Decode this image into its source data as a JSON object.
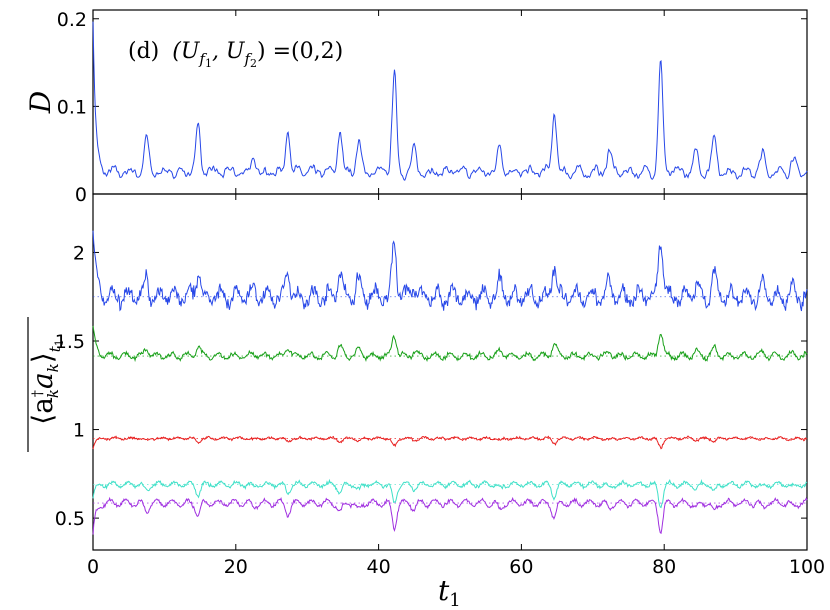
{
  "chart_data": [
    {
      "type": "line",
      "panel": "top",
      "annotation": "(d) (U_{f1}, U_{f2}) =(0,2)",
      "annotation_parts": {
        "label": "(d)",
        "lhs_open": "(U",
        "sub1": "f",
        "sub1i": "1",
        "comma": ", U",
        "sub2": "f",
        "sub2i": "2",
        "rhs": ") =(0,2)"
      },
      "ylabel": "D",
      "xlim": [
        0,
        100
      ],
      "ylim": [
        0,
        0.21
      ],
      "yticks": [
        "0",
        "0.1",
        "0.2"
      ],
      "ytick_values": [
        0,
        0.1,
        0.2
      ],
      "grid": false,
      "series": [
        {
          "color": "#2848e8",
          "base": 0.025,
          "start": 0.2,
          "peaks": [
            [
              7.5,
              0.062
            ],
            [
              14.7,
              0.078
            ],
            [
              22.5,
              0.04
            ],
            [
              27.3,
              0.073
            ],
            [
              34.6,
              0.072
            ],
            [
              37.2,
              0.06
            ],
            [
              42.2,
              0.136
            ],
            [
              45.0,
              0.05
            ],
            [
              57.0,
              0.057
            ],
            [
              64.6,
              0.092
            ],
            [
              72.3,
              0.05
            ],
            [
              79.5,
              0.147
            ],
            [
              84.5,
              0.048
            ],
            [
              87.0,
              0.068
            ],
            [
              93.8,
              0.045
            ],
            [
              98.0,
              0.04
            ]
          ]
        }
      ]
    },
    {
      "type": "line",
      "panel": "bottom",
      "ylabel_parts": {
        "open": "⟨a",
        "dag": "†",
        "k1": "k",
        "mid": "a",
        "k2": "k",
        "close": "⟩",
        "sub": "t",
        "subi": "1"
      },
      "xlabel": "t",
      "xlabel_sub": "1",
      "xlim": [
        0,
        100
      ],
      "ylim": [
        0.32,
        2.33
      ],
      "xticks": [
        "0",
        "20",
        "40",
        "60",
        "80",
        "100"
      ],
      "xtick_values": [
        0,
        20,
        40,
        60,
        80,
        100
      ],
      "yticks": [
        "0.5",
        "1",
        "1.5",
        "2"
      ],
      "ytick_values": [
        0.5,
        1,
        1.5,
        2
      ],
      "grid": false,
      "series": [
        {
          "color": "#2848e8",
          "mean": 1.75,
          "start": 2.15,
          "direction": 1,
          "scale": 1.0,
          "noise": 0.05
        },
        {
          "color": "#18a018",
          "mean": 1.415,
          "start": 1.58,
          "direction": 1,
          "scale": 0.4,
          "noise": 0.015
        },
        {
          "color": "#e82020",
          "mean": 0.95,
          "start": 0.9,
          "direction": -1,
          "scale": 0.15,
          "noise": 0.008
        },
        {
          "color": "#40e0c8",
          "mean": 0.69,
          "start": 0.62,
          "direction": -1,
          "scale": 0.35,
          "noise": 0.012
        },
        {
          "color": "#a030e0",
          "mean": 0.585,
          "start": 0.4,
          "direction": -1,
          "scale": 0.45,
          "noise": 0.012
        }
      ]
    }
  ]
}
